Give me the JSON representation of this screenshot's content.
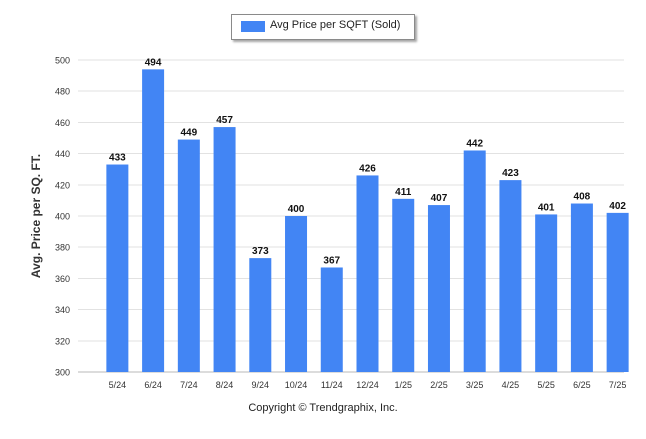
{
  "chart_data": {
    "type": "bar",
    "categories": [
      "5/24",
      "6/24",
      "7/24",
      "8/24",
      "9/24",
      "10/24",
      "11/24",
      "12/24",
      "1/25",
      "2/25",
      "3/25",
      "4/25",
      "5/25",
      "6/25",
      "7/25"
    ],
    "series": [
      {
        "name": "Avg Price per SQFT (Sold)",
        "values": [
          433,
          494,
          449,
          457,
          373,
          400,
          367,
          426,
          411,
          407,
          442,
          423,
          401,
          408,
          402
        ]
      }
    ],
    "data_labels": true,
    "ylabel": "Avg. Price per SQ. FT.",
    "ylim": [
      300,
      500
    ],
    "yticks": [
      300,
      320,
      340,
      360,
      380,
      400,
      420,
      440,
      460,
      480,
      500
    ],
    "grid": true,
    "legend_position": "top-center",
    "bar_color": "#4285f4"
  },
  "legend": {
    "label": "Avg Price per SQFT (Sold)"
  },
  "footer": {
    "copyright": "Copyright © Trendgraphix, Inc."
  }
}
